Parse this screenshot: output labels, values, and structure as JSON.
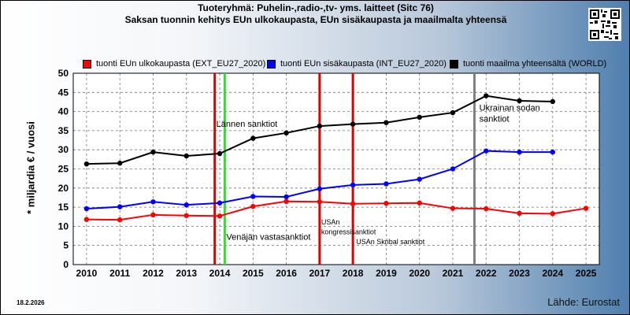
{
  "title_line1": "Tuoteryhmä: Puhelin-,radio-,tv- yms. laitteet (Sitc 76)",
  "title_line2": "Saksan tuonnin kehitys EUn ulkokaupasta, EUn sisäkaupasta ja maailmalta yhteensä",
  "date": "18.2.2026",
  "source": "Lähde: Eurostat",
  "chart_data": {
    "type": "line",
    "x": [
      2010,
      2011,
      2012,
      2013,
      2014,
      2015,
      2016,
      2017,
      2018,
      2019,
      2020,
      2021,
      2022,
      2023,
      2024,
      2025
    ],
    "x_tick_labels": [
      "2010",
      "2011",
      "2012",
      "2013",
      "2014",
      "2015",
      "2016",
      "2017",
      "2018",
      "2019",
      "2020",
      "2021",
      "2022",
      "2023",
      "2024",
      "2025"
    ],
    "y_tick_labels": [
      "0",
      "5",
      "10",
      "15",
      "20",
      "25",
      "30",
      "35",
      "40",
      "45",
      "50"
    ],
    "ylabel": "* miljardia € / vuosi",
    "xlim": [
      2009.6,
      2025.4
    ],
    "ylim": [
      0,
      50
    ],
    "grid": true,
    "legend_position": "top",
    "series": [
      {
        "name": "tuonti EUn ulkokaupasta (EXT_EU27_2020)",
        "color": "#ff0000",
        "values": [
          11.8,
          11.7,
          13.0,
          12.8,
          12.7,
          15.2,
          16.5,
          16.4,
          15.9,
          16.0,
          16.1,
          14.7,
          14.6,
          13.4,
          13.3,
          14.7
        ]
      },
      {
        "name": "tuonti EUn sisäkaupasta (INT_EU27_2020)",
        "color": "#0000ff",
        "values": [
          14.6,
          15.1,
          16.4,
          15.6,
          16.1,
          17.8,
          17.7,
          19.8,
          20.8,
          21.1,
          22.3,
          25.0,
          29.7,
          29.4,
          29.4,
          null
        ]
      },
      {
        "name": "tuonti maailma yhteensältä (WORLD)",
        "color": "#000000",
        "values": [
          26.3,
          26.5,
          29.4,
          28.4,
          29.0,
          33.0,
          34.4,
          36.2,
          36.7,
          37.1,
          38.5,
          39.7,
          44.1,
          42.8,
          42.6,
          null
        ]
      }
    ],
    "event_lines": [
      {
        "x": 2013.85,
        "color": "#e00000"
      },
      {
        "x": 2014.15,
        "color": "#33dd33"
      },
      {
        "x": 2017.0,
        "color": "#e00000"
      },
      {
        "x": 2018.0,
        "color": "#e00000"
      },
      {
        "x": 2021.65,
        "color": "#808080"
      }
    ],
    "annotations": [
      {
        "text": "Lännen sanktiot",
        "x": 2013.85,
        "y": 36.0
      },
      {
        "text": "Venäjän vastasanktiot",
        "x": 2014.15,
        "y": 6.5
      },
      {
        "text": "USAn",
        "x": 2017.0,
        "y": 10.5,
        "small": true
      },
      {
        "text": "kongressisanktiot",
        "x": 2017.0,
        "y": 7.9,
        "small": true
      },
      {
        "text": "USAn Skribal sanktiot",
        "x": 2018.05,
        "y": 5.4,
        "small": true
      },
      {
        "text": "Ukrainan sodan",
        "x": 2021.75,
        "y": 40.2
      },
      {
        "text": "sanktiot",
        "x": 2021.75,
        "y": 37.3
      }
    ]
  }
}
